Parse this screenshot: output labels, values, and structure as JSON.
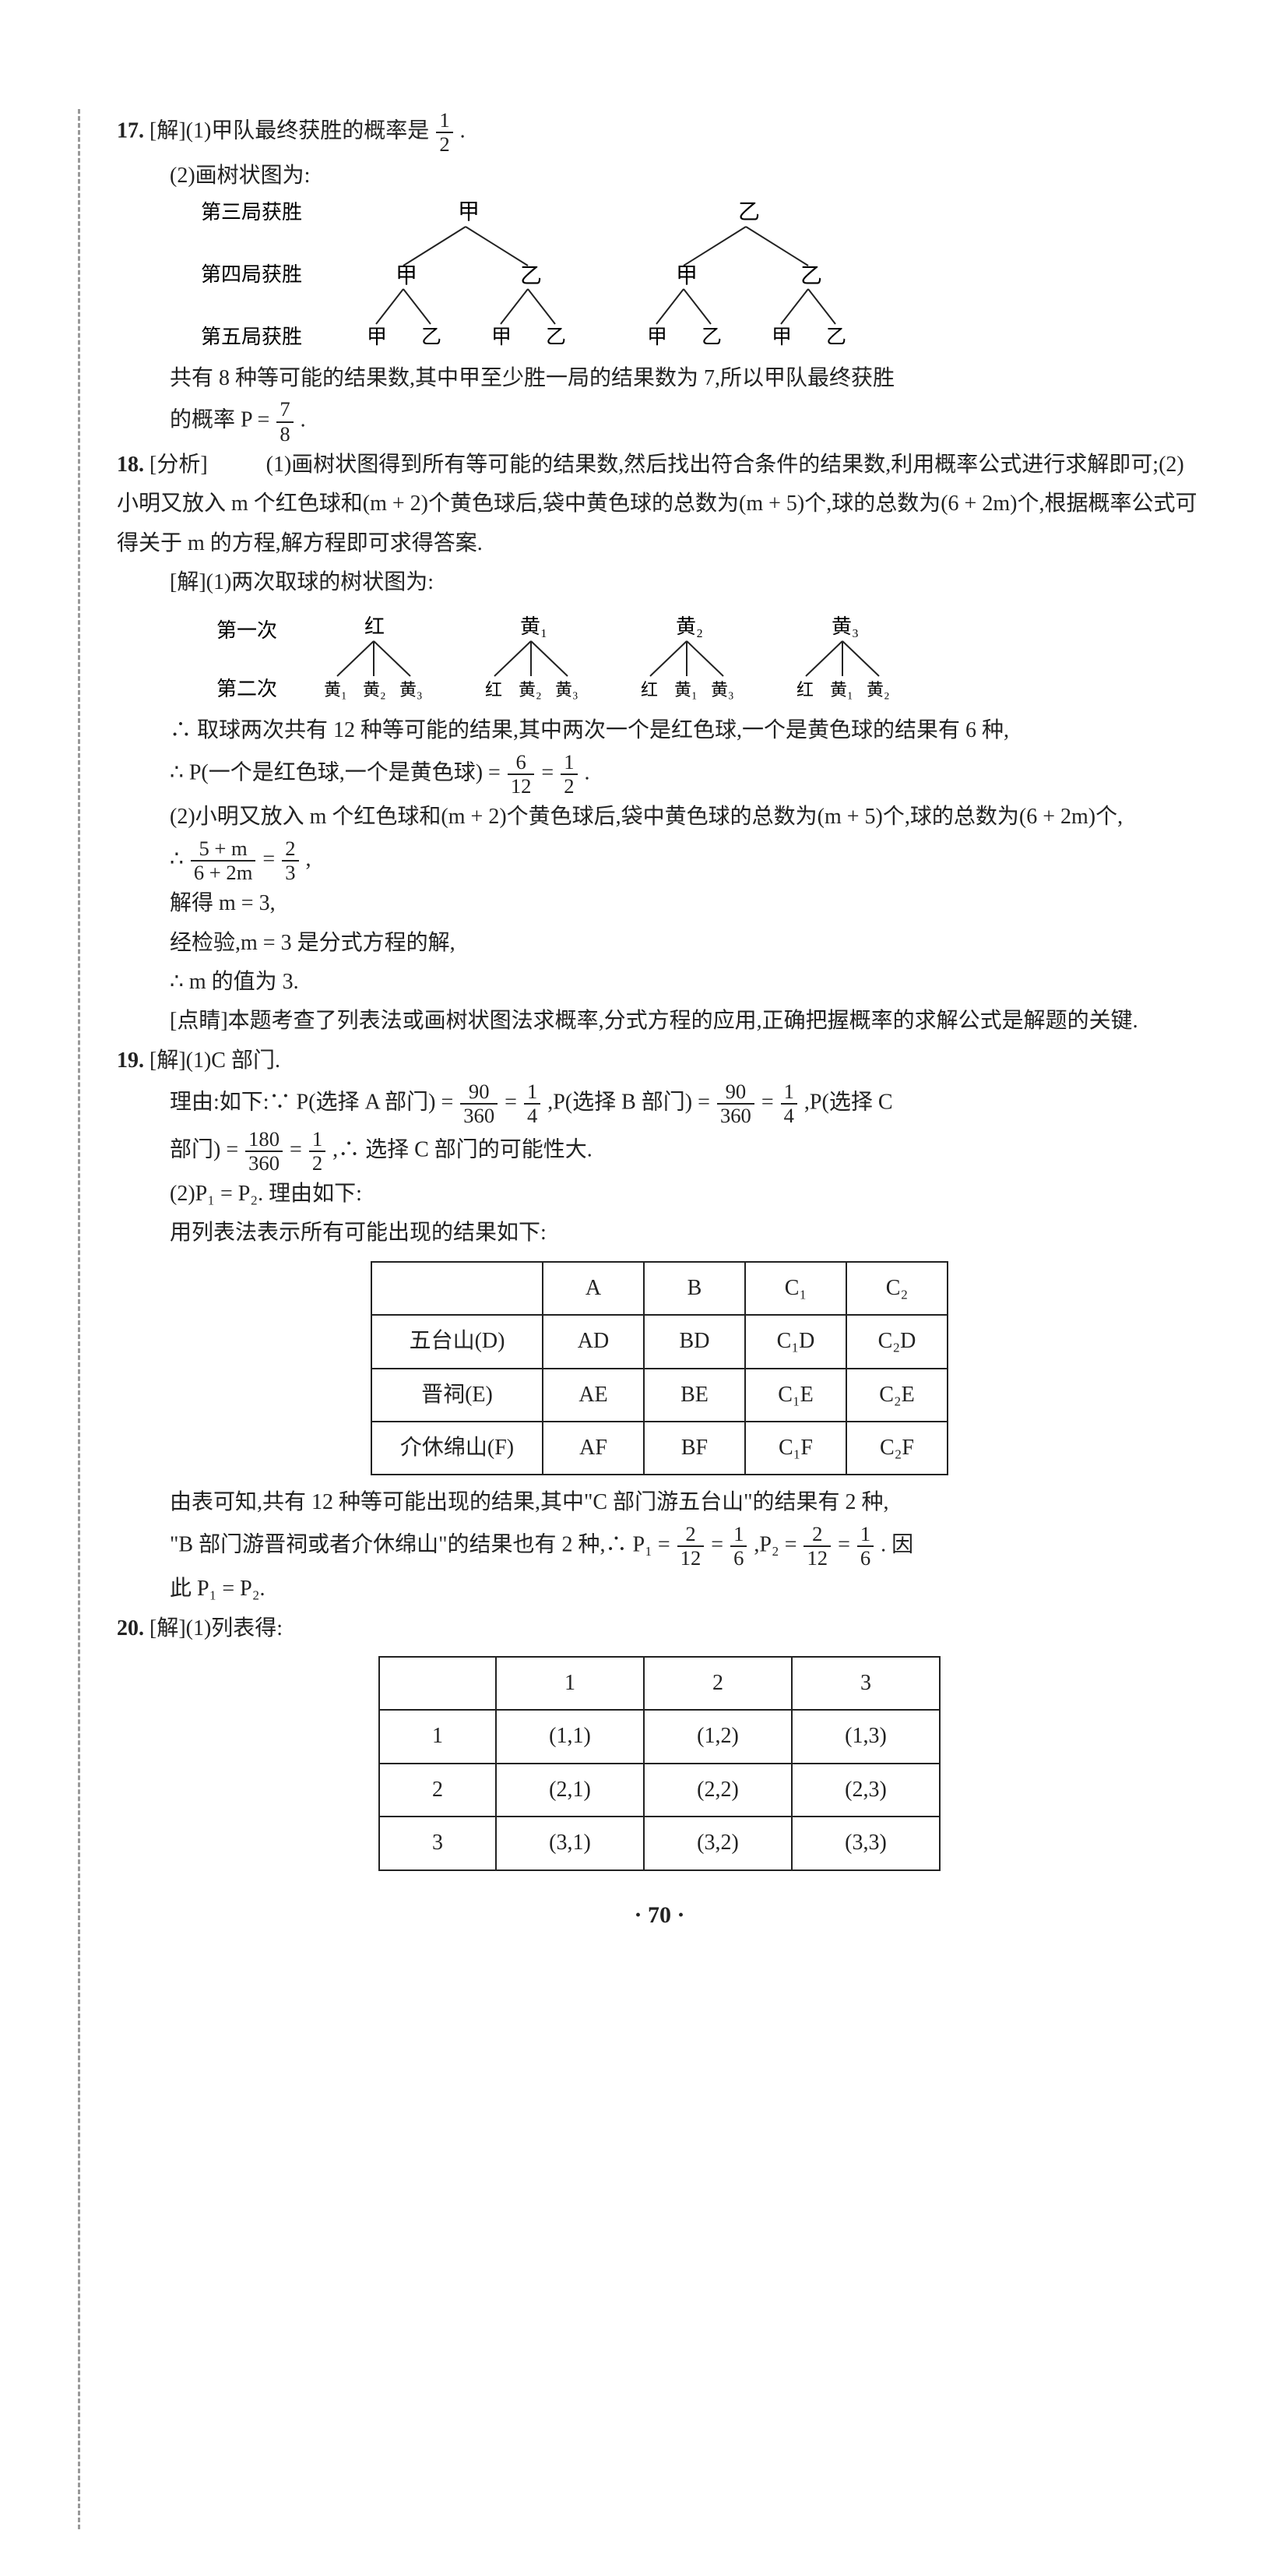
{
  "p17": {
    "num": "17. ",
    "line1_a": "[解](1)甲队最终获胜的概率是",
    "frac1": {
      "num": "1",
      "den": "2"
    },
    "line1_b": ".",
    "line2": "(2)画树状图为:",
    "tree": {
      "level3_label": "第三局获胜",
      "level4_label": "第四局获胜",
      "level5_label": "第五局获胜",
      "roots": [
        "甲",
        "乙"
      ],
      "mid": [
        "甲",
        "乙",
        "甲",
        "乙"
      ],
      "leaves": [
        "甲",
        "乙",
        "甲",
        "乙",
        "甲",
        "乙",
        "甲",
        "乙"
      ]
    },
    "line3": "共有 8 种等可能的结果数,其中甲至少胜一局的结果数为 7,所以甲队最终获胜",
    "line4_a": "的概率 P = ",
    "frac2": {
      "num": "7",
      "den": "8"
    },
    "line4_b": "."
  },
  "p18": {
    "num": "18. ",
    "analysis_label": "[分析]",
    "analysis": "(1)画树状图得到所有等可能的结果数,然后找出符合条件的结果数,利用概率公式进行求解即可;(2)小明又放入 m 个红色球和(m + 2)个黄色球后,袋中黄色球的总数为(m + 5)个,球的总数为(6 + 2m)个,根据概率公式可得关于 m 的方程,解方程即可求得答案.",
    "sol_label": "[解](1)两次取球的树状图为:",
    "tree": {
      "level1_label": "第一次",
      "level2_label": "第二次",
      "roots": [
        "红",
        "黄₁",
        "黄₂",
        "黄₃"
      ],
      "leaves": [
        [
          "黄₁",
          "黄₂",
          "黄₃"
        ],
        [
          "红",
          "黄₂",
          "黄₃"
        ],
        [
          "红",
          "黄₁",
          "黄₃"
        ],
        [
          "红",
          "黄₁",
          "黄₂"
        ]
      ]
    },
    "line_a": "∴ 取球两次共有 12 种等可能的结果,其中两次一个是红色球,一个是黄色球的结果有 6 种,",
    "line_b_a": "∴ P(一个是红色球,一个是黄色球) = ",
    "frac3": {
      "num": "6",
      "den": "12"
    },
    "eq": " = ",
    "frac4": {
      "num": "1",
      "den": "2"
    },
    "line_b_b": ".",
    "line_c": "(2)小明又放入 m 个红色球和(m + 2)个黄色球后,袋中黄色球的总数为(m + 5)个,球的总数为(6 + 2m)个,",
    "line_d_a": "∴ ",
    "frac5": {
      "num": "5 + m",
      "den": "6 + 2m"
    },
    "line_d_b": " = ",
    "frac6": {
      "num": "2",
      "den": "3"
    },
    "line_d_c": " ,",
    "line_e": "解得 m = 3,",
    "line_f": "经检验,m = 3 是分式方程的解,",
    "line_g": "∴ m 的值为 3.",
    "djj_label": "[点睛]",
    "djj": "本题考查了列表法或画树状图法求概率,分式方程的应用,正确把握概率的求解公式是解题的关键."
  },
  "p19": {
    "num": "19. ",
    "line1": "[解](1)C 部门.",
    "line2_a": "理由:如下:∵ P(选择 A 部门) = ",
    "frac7": {
      "num": "90",
      "den": "360"
    },
    "eq": " = ",
    "frac8": {
      "num": "1",
      "den": "4"
    },
    "line2_b": ",P(选择 B 部门) = ",
    "frac9": {
      "num": "90",
      "den": "360"
    },
    "frac10": {
      "num": "1",
      "den": "4"
    },
    "line2_c": ",P(选择 C",
    "line3_a": "部门) = ",
    "frac11": {
      "num": "180",
      "den": "360"
    },
    "frac12": {
      "num": "1",
      "den": "2"
    },
    "line3_b": ",∴ 选择 C 部门的可能性大.",
    "line4": "(2)P₁ = P₂. 理由如下:",
    "line5": "用列表法表示所有可能出现的结果如下:",
    "table1": {
      "headers": [
        "",
        "A",
        "B",
        "C₁",
        "C₂"
      ],
      "rows": [
        [
          "五台山(D)",
          "AD",
          "BD",
          "C₁D",
          "C₂D"
        ],
        [
          "晋祠(E)",
          "AE",
          "BE",
          "C₁E",
          "C₂E"
        ],
        [
          "介休绵山(F)",
          "AF",
          "BF",
          "C₁F",
          "C₂F"
        ]
      ],
      "col_widths": [
        "220px",
        "130px",
        "130px",
        "130px",
        "130px"
      ]
    },
    "line6": "由表可知,共有 12 种等可能出现的结果,其中\"C 部门游五台山\"的结果有 2 种,",
    "line7_a": "\"B 部门游晋祠或者介休绵山\"的结果也有 2 种,∴ P₁ = ",
    "frac13": {
      "num": "2",
      "den": "12"
    },
    "frac14": {
      "num": "1",
      "den": "6"
    },
    "line7_b": ",P₂ = ",
    "frac15": {
      "num": "2",
      "den": "12"
    },
    "frac16": {
      "num": "1",
      "den": "6"
    },
    "line7_c": ". 因",
    "line8": "此 P₁ = P₂."
  },
  "p20": {
    "num": "20. ",
    "line1": "[解](1)列表得:",
    "table2": {
      "headers": [
        "",
        "1",
        "2",
        "3"
      ],
      "rows": [
        [
          "1",
          "(1,1)",
          "(1,2)",
          "(1,3)"
        ],
        [
          "2",
          "(2,1)",
          "(2,2)",
          "(2,3)"
        ],
        [
          "3",
          "(3,1)",
          "(3,2)",
          "(3,3)"
        ]
      ],
      "col_widths": [
        "150px",
        "190px",
        "190px",
        "190px"
      ]
    }
  },
  "page_num": "· 70 ·"
}
